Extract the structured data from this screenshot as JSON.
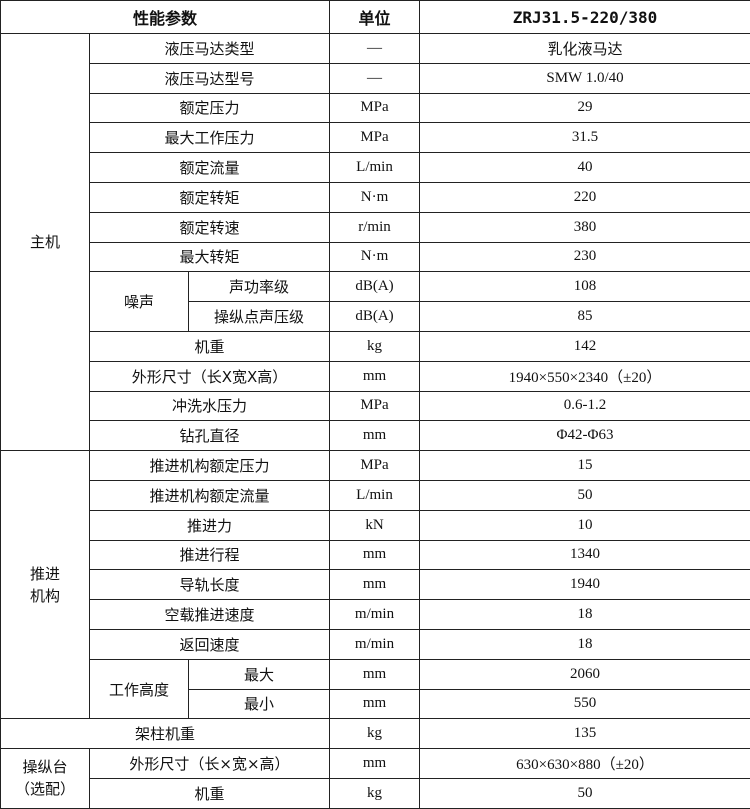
{
  "header": {
    "param": "性能参数",
    "unit": "单位",
    "model": "ZRJ31.5-220/380"
  },
  "groups": [
    {
      "label": "主机",
      "rows": [
        {
          "param": "液压马达类型",
          "unit": "—",
          "value": "乳化液马达"
        },
        {
          "param": "液压马达型号",
          "unit": "—",
          "value": "SMW 1.0/40"
        },
        {
          "param": "额定压力",
          "unit": "MPa",
          "value": "29"
        },
        {
          "param": "最大工作压力",
          "unit": "MPa",
          "value": "31.5"
        },
        {
          "param": "额定流量",
          "unit": "L/min",
          "value": "40"
        },
        {
          "param": "额定转矩",
          "unit": "N·m",
          "value": "220"
        },
        {
          "param": "额定转速",
          "unit": "r/min",
          "value": "380"
        },
        {
          "param": "最大转矩",
          "unit": "N·m",
          "value": "230"
        },
        {
          "param": "噪声",
          "sub": "声功率级",
          "unit": "dB(A)",
          "value": "108"
        },
        {
          "param": "噪声",
          "sub": "操纵点声压级",
          "unit": "dB(A)",
          "value": "85"
        },
        {
          "param": "机重",
          "unit": "kg",
          "value": "142"
        },
        {
          "param": "外形尺寸（长X宽X高）",
          "unit": "mm",
          "value": "1940×550×2340（±20）"
        },
        {
          "param": "冲洗水压力",
          "unit": "MPa",
          "value": "0.6-1.2"
        },
        {
          "param": "钻孔直径",
          "unit": "mm",
          "value": "Φ42-Φ63"
        }
      ]
    },
    {
      "label": "推进\n机构",
      "rows": [
        {
          "param": "推进机构额定压力",
          "unit": "MPa",
          "value": "15"
        },
        {
          "param": "推进机构额定流量",
          "unit": "L/min",
          "value": "50"
        },
        {
          "param": "推进力",
          "unit": "kN",
          "value": "10"
        },
        {
          "param": "推进行程",
          "unit": "mm",
          "value": "1340"
        },
        {
          "param": "导轨长度",
          "unit": "mm",
          "value": "1940"
        },
        {
          "param": "空载推进速度",
          "unit": "m/min",
          "value": "18"
        },
        {
          "param": "返回速度",
          "unit": "m/min",
          "value": "18"
        },
        {
          "param": "工作高度",
          "sub": "最大",
          "unit": "mm",
          "value": "2060"
        },
        {
          "param": "工作高度",
          "sub": "最小",
          "unit": "mm",
          "value": "550"
        }
      ]
    },
    {
      "label": "架柱机重",
      "single": true,
      "rows": [
        {
          "param": "架柱机重",
          "unit": "kg",
          "value": "135"
        }
      ]
    },
    {
      "label": "操纵台\n（选配）",
      "rows": [
        {
          "param": "外形尺寸（长×宽×高）",
          "unit": "mm",
          "value": "630×630×880（±20）"
        },
        {
          "param": "机重",
          "unit": "kg",
          "value": "50"
        }
      ]
    }
  ]
}
